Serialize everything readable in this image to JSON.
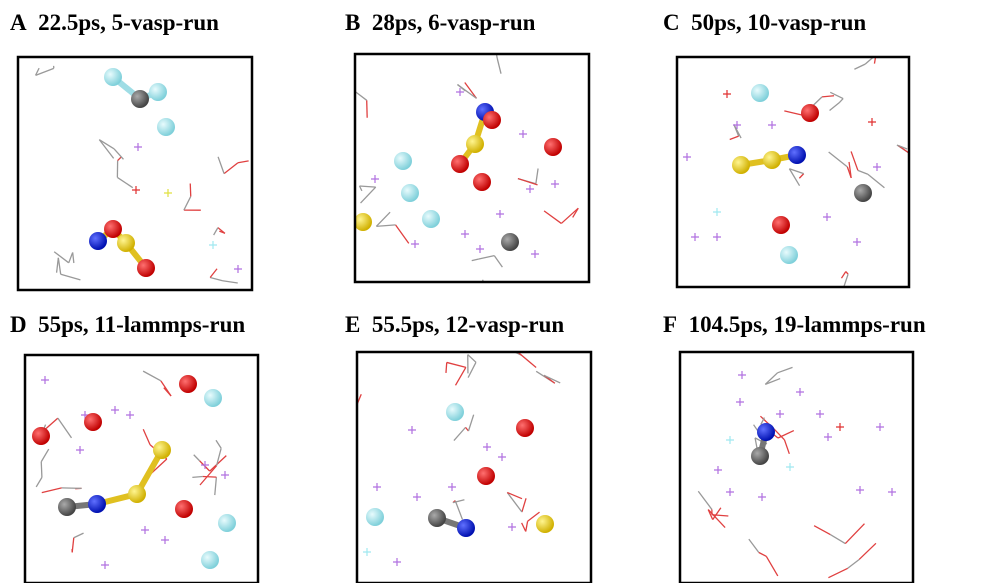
{
  "panels": [
    {
      "label": "A",
      "title": "22.5ps, 5-vasp-run"
    },
    {
      "label": "B",
      "title": "28ps, 6-vasp-run"
    },
    {
      "label": "C",
      "title": "50ps, 10-vasp-run"
    },
    {
      "label": "D",
      "title": "55ps, 11-lammps-run"
    },
    {
      "label": "E",
      "title": "55.5ps, 12-vasp-run"
    },
    {
      "label": "F",
      "title": "104.5ps, 19-lammps-run"
    }
  ]
}
